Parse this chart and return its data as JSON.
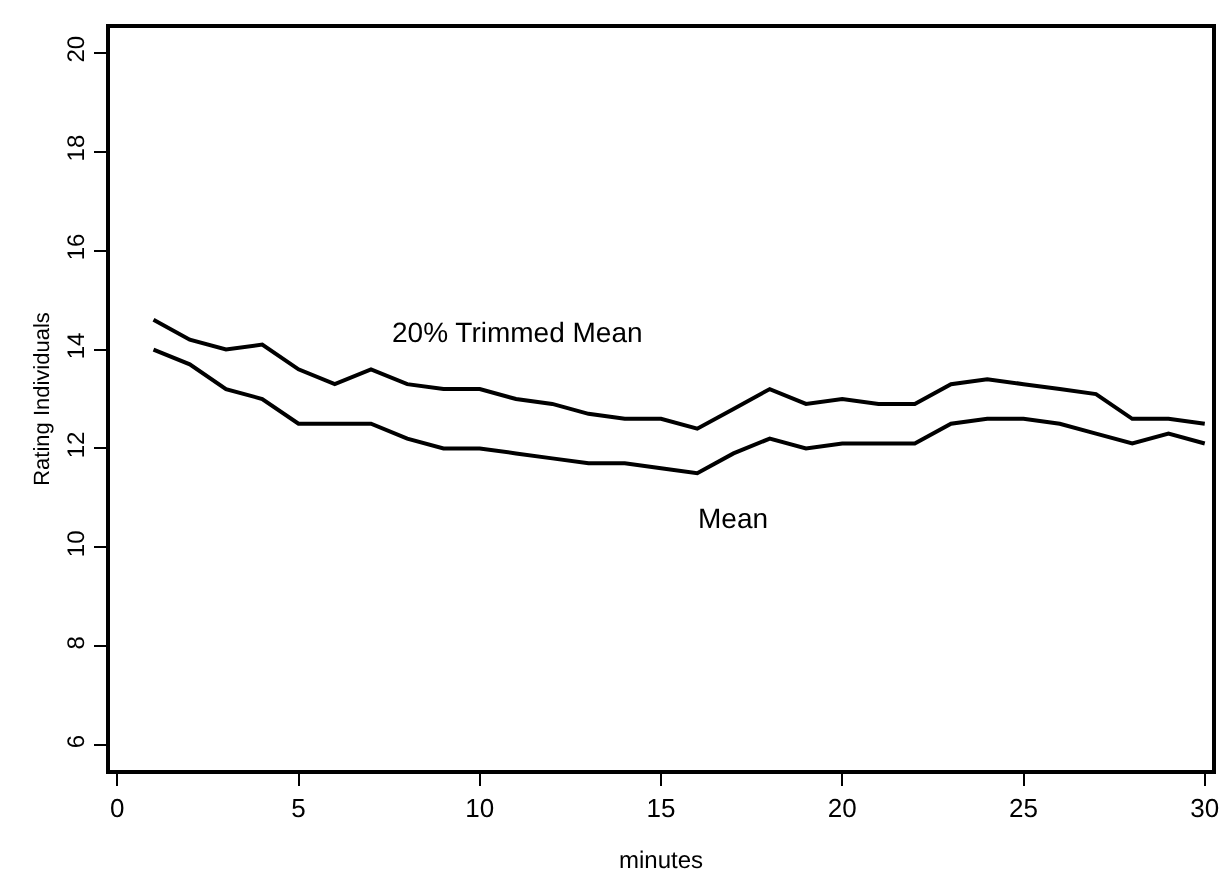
{
  "chart_data": {
    "type": "line",
    "xlabel": "minutes",
    "ylabel": "Rating Individuals",
    "x": [
      1,
      2,
      3,
      4,
      5,
      6,
      7,
      8,
      9,
      10,
      11,
      12,
      13,
      14,
      15,
      16,
      17,
      18,
      19,
      20,
      21,
      22,
      23,
      24,
      25,
      26,
      27,
      28,
      29,
      30
    ],
    "series": [
      {
        "name": "20% Trimmed Mean",
        "color": "#000000",
        "values": [
          14.6,
          14.2,
          14.0,
          14.1,
          13.6,
          13.3,
          13.6,
          13.3,
          13.2,
          13.2,
          13.0,
          12.9,
          12.7,
          12.6,
          12.6,
          12.4,
          12.8,
          13.2,
          12.9,
          13.0,
          12.9,
          12.9,
          13.3,
          13.4,
          13.3,
          13.2,
          13.1,
          12.6,
          12.6,
          12.5
        ]
      },
      {
        "name": "Mean",
        "color": "#000000",
        "values": [
          14.0,
          13.7,
          13.2,
          13.0,
          12.5,
          12.5,
          12.5,
          12.2,
          12.0,
          12.0,
          11.9,
          11.8,
          11.7,
          11.7,
          11.6,
          11.5,
          11.9,
          12.2,
          12.0,
          12.1,
          12.1,
          12.1,
          12.5,
          12.6,
          12.6,
          12.5,
          12.3,
          12.1,
          12.3,
          12.1
        ]
      }
    ],
    "xlim": [
      -0.2,
      30.2
    ],
    "xticks": [
      0,
      5,
      10,
      15,
      20,
      25,
      30
    ],
    "ylim": [
      5.5,
      20.5
    ],
    "yticks": [
      6,
      8,
      10,
      12,
      14,
      16,
      18,
      20
    ],
    "marker": "none",
    "line_style": "solid"
  }
}
